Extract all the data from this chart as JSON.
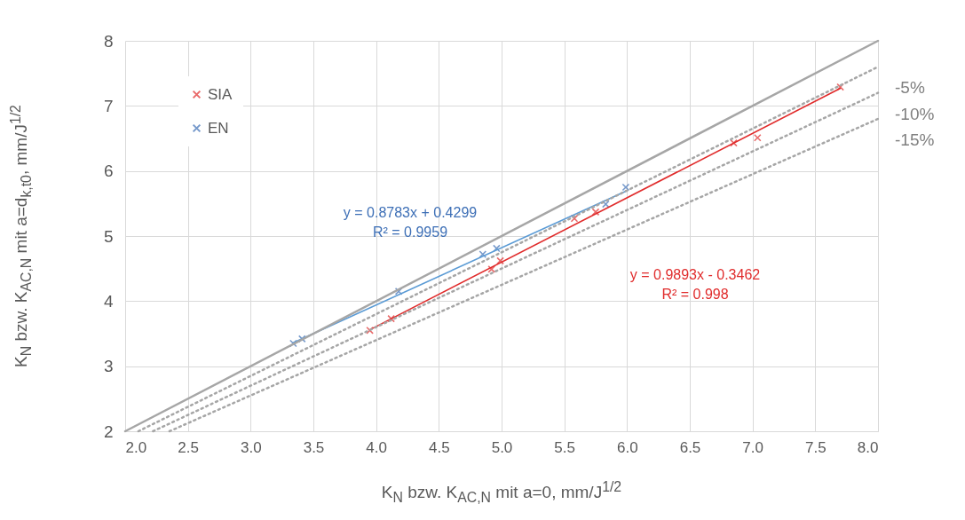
{
  "chart_data": {
    "type": "scatter",
    "xlabel": "K$_{N}$  bzw. K$_{AC,N}$ mit a=0, mm/J$^{1/2}$",
    "ylabel": "K$_{N}$  bzw. K$_{AC,N}$ mit a=d$_{k,t0}$, mm/J$^{1/2}$",
    "xlim": [
      2,
      8
    ],
    "ylim": [
      2,
      8
    ],
    "xticks": [
      {
        "value": 2,
        "label": "2.0"
      },
      2.5,
      {
        "value": 3,
        "label": "3.0"
      },
      3.5,
      {
        "value": 4,
        "label": "4.0"
      },
      4.5,
      {
        "value": 5,
        "label": "5.0"
      },
      5.5,
      {
        "value": 6,
        "label": "6.0"
      },
      6.5,
      {
        "value": 7,
        "label": "7.0"
      },
      7.5,
      {
        "value": 8,
        "label": "8.0"
      }
    ],
    "yticks": [
      2,
      3,
      4,
      5,
      6,
      7,
      8
    ],
    "grid": true,
    "legend": "top left",
    "series": [
      {
        "name": "SIA",
        "marker": "cross",
        "color": "#e02b2b",
        "x": [
          3.95,
          4.12,
          4.92,
          4.99,
          5.58,
          5.75,
          6.85,
          7.04,
          7.7
        ],
        "values": [
          3.55,
          3.73,
          4.49,
          4.62,
          5.27,
          5.37,
          6.43,
          6.51,
          7.29
        ]
      },
      {
        "name": "EN",
        "marker": "cross",
        "color": "#3d6fb6",
        "x": [
          3.34,
          3.41,
          4.18,
          4.85,
          4.96,
          5.83,
          5.99
        ],
        "values": [
          3.35,
          3.42,
          4.15,
          4.72,
          4.81,
          5.49,
          5.75
        ]
      },
      {
        "type": "line",
        "color": "#e02b2b",
        "line_style": "solid",
        "x": [
          3.95,
          7.7
        ],
        "values": [
          3.56,
          7.27
        ]
      },
      {
        "type": "line",
        "color": "#5b9bd5",
        "line_style": "solid",
        "x": [
          3.34,
          5.99
        ],
        "values": [
          3.36,
          5.69
        ]
      },
      {
        "type": "line",
        "color": "#a6a6a6",
        "line_style": "solid",
        "x": [
          2,
          8
        ],
        "values": [
          2,
          8
        ]
      },
      {
        "name": "-5%",
        "type": "line",
        "color": "#a6a6a6",
        "line_style": "dotted",
        "x": [
          2.105,
          8
        ],
        "values": [
          2,
          7.6
        ]
      },
      {
        "name": "-10%",
        "type": "line",
        "color": "#a6a6a6",
        "line_style": "dotted",
        "x": [
          2.222,
          8
        ],
        "values": [
          2,
          7.2
        ]
      },
      {
        "name": "-15%",
        "type": "line",
        "color": "#a6a6a6",
        "line_style": "dotted",
        "x": [
          2.353,
          8
        ],
        "values": [
          2,
          6.8
        ]
      }
    ],
    "annotations": [
      "y = 0.8783x + 0.4299\nR² = 0.9959",
      "y = 0.9893x - 0.3462\nR² = 0.998"
    ]
  }
}
